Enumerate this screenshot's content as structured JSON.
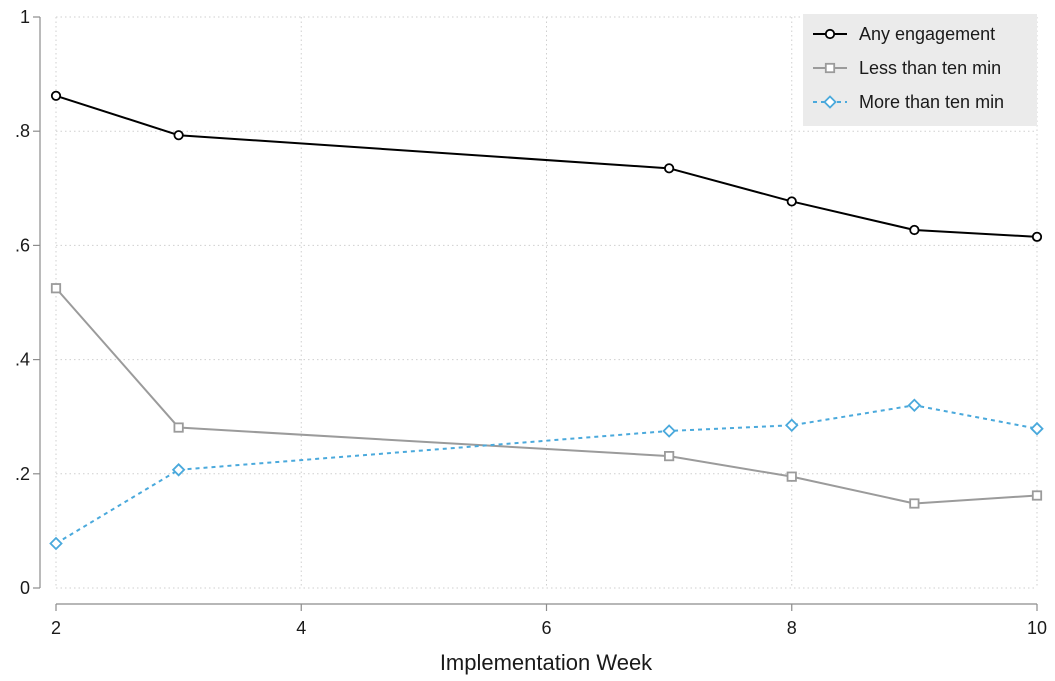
{
  "chart_data": {
    "type": "line",
    "title": "",
    "xlabel": "Implementation Week",
    "ylabel": "",
    "xlim": [
      2,
      10
    ],
    "ylim": [
      0,
      1
    ],
    "x_ticks": [
      2,
      4,
      6,
      8,
      10
    ],
    "x_tick_labels": [
      "2",
      "4",
      "6",
      "8",
      "10"
    ],
    "y_ticks": [
      0,
      0.2,
      0.4,
      0.6,
      0.8,
      1
    ],
    "y_tick_labels": [
      "0",
      ".2",
      ".4",
      ".6",
      ".8",
      "1"
    ],
    "grid": true,
    "legend_position": "top-right",
    "series": [
      {
        "name": "Any engagement",
        "color": "#000000",
        "marker": "circle",
        "dash": "solid",
        "x": [
          2,
          3,
          7,
          8,
          9,
          10
        ],
        "y": [
          0.862,
          0.793,
          0.735,
          0.677,
          0.627,
          0.615
        ]
      },
      {
        "name": "Less than ten min",
        "color": "#9b9b9b",
        "marker": "square",
        "dash": "solid",
        "x": [
          2,
          3,
          7,
          8,
          9,
          10
        ],
        "y": [
          0.525,
          0.281,
          0.231,
          0.195,
          0.148,
          0.162
        ]
      },
      {
        "name": "More than ten min",
        "color": "#4aa9dc",
        "marker": "diamond",
        "dash": "dashed",
        "x": [
          2,
          3,
          7,
          8,
          9,
          10
        ],
        "y": [
          0.078,
          0.207,
          0.275,
          0.285,
          0.32,
          0.279
        ]
      }
    ]
  }
}
